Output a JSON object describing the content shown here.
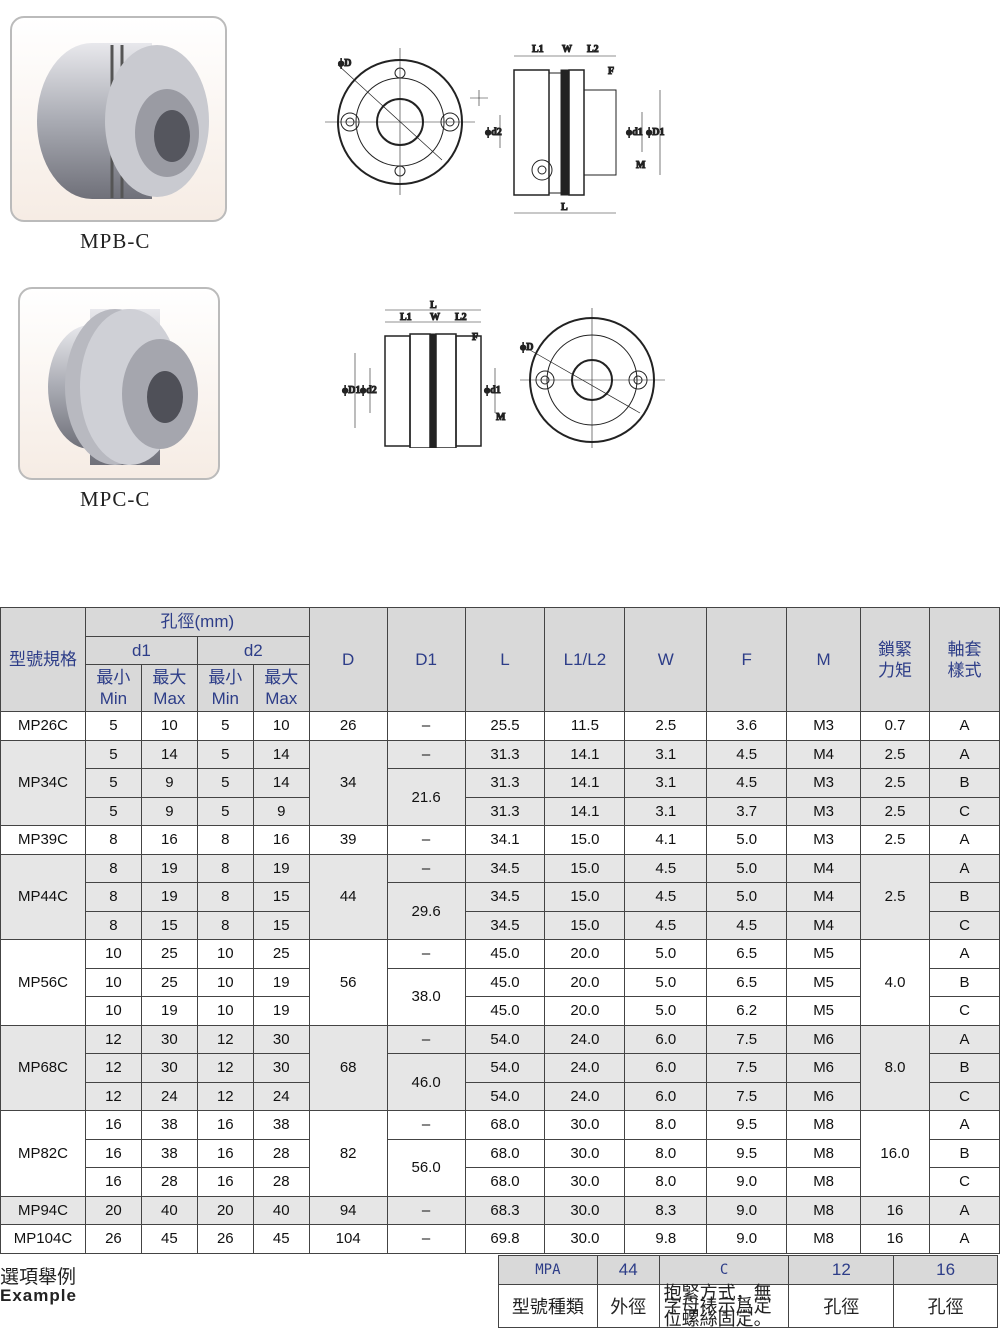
{
  "products": [
    {
      "caption": "MPB-C"
    },
    {
      "caption": "MPC-C"
    }
  ],
  "drawing_labels": {
    "top": {
      "phiD": "ϕD",
      "L1": "L1",
      "W": "W",
      "L2": "L2",
      "F": "F",
      "phid2": "ϕd2",
      "phid1": "ϕd1",
      "phiD1": "ϕD1",
      "M": "M",
      "L": "L"
    },
    "bottom": {
      "L": "L",
      "L1": "L1",
      "W": "W",
      "L2": "L2",
      "F": "F",
      "phiD1": "ϕD1",
      "phid2": "ϕd2",
      "phid1": "ϕd1",
      "M": "M",
      "phiD": "ϕD"
    }
  },
  "table": {
    "header": {
      "model": "型號規格",
      "bore": "孔徑(mm)",
      "d1": "d1",
      "d2": "d2",
      "min": "最小\nMin",
      "max": "最大\nMax",
      "D": "D",
      "D1": "D1",
      "L": "L",
      "L1L2": "L1/L2",
      "W": "W",
      "F": "F",
      "M": "M",
      "torque": "鎖緊\n力矩",
      "hub": "軸套\n樣式"
    },
    "groups": [
      {
        "model": "MP26C",
        "D": "26",
        "rows": [
          {
            "d1min": "5",
            "d1max": "10",
            "d2min": "5",
            "d2max": "10",
            "L": "25.5",
            "L1L2": "11.5",
            "W": "2.5",
            "F": "3.6",
            "M": "M3",
            "hub": "A"
          }
        ],
        "D1": [
          {
            "v": "–",
            "span": 1
          }
        ],
        "torque": [
          {
            "v": "0.7",
            "span": 1
          }
        ]
      },
      {
        "model": "MP34C",
        "D": "34",
        "rows": [
          {
            "d1min": "5",
            "d1max": "14",
            "d2min": "5",
            "d2max": "14",
            "L": "31.3",
            "L1L2": "14.1",
            "W": "3.1",
            "F": "4.5",
            "M": "M4",
            "hub": "A"
          },
          {
            "d1min": "5",
            "d1max": "9",
            "d2min": "5",
            "d2max": "14",
            "L": "31.3",
            "L1L2": "14.1",
            "W": "3.1",
            "F": "4.5",
            "M": "M3",
            "hub": "B"
          },
          {
            "d1min": "5",
            "d1max": "9",
            "d2min": "5",
            "d2max": "9",
            "L": "31.3",
            "L1L2": "14.1",
            "W": "3.1",
            "F": "3.7",
            "M": "M3",
            "hub": "C"
          }
        ],
        "D1": [
          {
            "v": "–",
            "span": 1
          },
          {
            "v": "21.6",
            "span": 2
          }
        ],
        "torque": [
          {
            "v": "2.5",
            "span": 1
          },
          {
            "v": "2.5",
            "span": 1
          },
          {
            "v": "2.5",
            "span": 1
          }
        ]
      },
      {
        "model": "MP39C",
        "D": "39",
        "rows": [
          {
            "d1min": "8",
            "d1max": "16",
            "d2min": "8",
            "d2max": "16",
            "L": "34.1",
            "L1L2": "15.0",
            "W": "4.1",
            "F": "5.0",
            "M": "M3",
            "hub": "A"
          }
        ],
        "D1": [
          {
            "v": "–",
            "span": 1
          }
        ],
        "torque": [
          {
            "v": "2.5",
            "span": 1
          }
        ]
      },
      {
        "model": "MP44C",
        "D": "44",
        "rows": [
          {
            "d1min": "8",
            "d1max": "19",
            "d2min": "8",
            "d2max": "19",
            "L": "34.5",
            "L1L2": "15.0",
            "W": "4.5",
            "F": "5.0",
            "M": "M4",
            "hub": "A"
          },
          {
            "d1min": "8",
            "d1max": "19",
            "d2min": "8",
            "d2max": "15",
            "L": "34.5",
            "L1L2": "15.0",
            "W": "4.5",
            "F": "5.0",
            "M": "M4",
            "hub": "B"
          },
          {
            "d1min": "8",
            "d1max": "15",
            "d2min": "8",
            "d2max": "15",
            "L": "34.5",
            "L1L2": "15.0",
            "W": "4.5",
            "F": "4.5",
            "M": "M4",
            "hub": "C"
          }
        ],
        "D1": [
          {
            "v": "–",
            "span": 1
          },
          {
            "v": "29.6",
            "span": 2
          }
        ],
        "torque": [
          {
            "v": "2.5",
            "span": 3
          }
        ]
      },
      {
        "model": "MP56C",
        "D": "56",
        "rows": [
          {
            "d1min": "10",
            "d1max": "25",
            "d2min": "10",
            "d2max": "25",
            "L": "45.0",
            "L1L2": "20.0",
            "W": "5.0",
            "F": "6.5",
            "M": "M5",
            "hub": "A"
          },
          {
            "d1min": "10",
            "d1max": "25",
            "d2min": "10",
            "d2max": "19",
            "L": "45.0",
            "L1L2": "20.0",
            "W": "5.0",
            "F": "6.5",
            "M": "M5",
            "hub": "B"
          },
          {
            "d1min": "10",
            "d1max": "19",
            "d2min": "10",
            "d2max": "19",
            "L": "45.0",
            "L1L2": "20.0",
            "W": "5.0",
            "F": "6.2",
            "M": "M5",
            "hub": "C"
          }
        ],
        "D1": [
          {
            "v": "–",
            "span": 1
          },
          {
            "v": "38.0",
            "span": 2
          }
        ],
        "torque": [
          {
            "v": "4.0",
            "span": 3
          }
        ]
      },
      {
        "model": "MP68C",
        "D": "68",
        "rows": [
          {
            "d1min": "12",
            "d1max": "30",
            "d2min": "12",
            "d2max": "30",
            "L": "54.0",
            "L1L2": "24.0",
            "W": "6.0",
            "F": "7.5",
            "M": "M6",
            "hub": "A"
          },
          {
            "d1min": "12",
            "d1max": "30",
            "d2min": "12",
            "d2max": "30",
            "L": "54.0",
            "L1L2": "24.0",
            "W": "6.0",
            "F": "7.5",
            "M": "M6",
            "hub": "B"
          },
          {
            "d1min": "12",
            "d1max": "24",
            "d2min": "12",
            "d2max": "24",
            "L": "54.0",
            "L1L2": "24.0",
            "W": "6.0",
            "F": "7.5",
            "M": "M6",
            "hub": "C"
          }
        ],
        "D1": [
          {
            "v": "–",
            "span": 1
          },
          {
            "v": "46.0",
            "span": 2
          }
        ],
        "torque": [
          {
            "v": "8.0",
            "span": 3
          }
        ]
      },
      {
        "model": "MP82C",
        "D": "82",
        "rows": [
          {
            "d1min": "16",
            "d1max": "38",
            "d2min": "16",
            "d2max": "38",
            "L": "68.0",
            "L1L2": "30.0",
            "W": "8.0",
            "F": "9.5",
            "M": "M8",
            "hub": "A"
          },
          {
            "d1min": "16",
            "d1max": "38",
            "d2min": "16",
            "d2max": "28",
            "L": "68.0",
            "L1L2": "30.0",
            "W": "8.0",
            "F": "9.5",
            "M": "M8",
            "hub": "B"
          },
          {
            "d1min": "16",
            "d1max": "28",
            "d2min": "16",
            "d2max": "28",
            "L": "68.0",
            "L1L2": "30.0",
            "W": "8.0",
            "F": "9.0",
            "M": "M8",
            "hub": "C"
          }
        ],
        "D1": [
          {
            "v": "–",
            "span": 1
          },
          {
            "v": "56.0",
            "span": 2
          }
        ],
        "torque": [
          {
            "v": "16.0",
            "span": 3
          }
        ]
      },
      {
        "model": "MP94C",
        "D": "94",
        "rows": [
          {
            "d1min": "20",
            "d1max": "40",
            "d2min": "20",
            "d2max": "40",
            "L": "68.3",
            "L1L2": "30.0",
            "W": "8.3",
            "F": "9.0",
            "M": "M8",
            "hub": "A"
          }
        ],
        "D1": [
          {
            "v": "–",
            "span": 1
          }
        ],
        "torque": [
          {
            "v": "16",
            "span": 1
          }
        ]
      },
      {
        "model": "MP104C",
        "D": "104",
        "rows": [
          {
            "d1min": "26",
            "d1max": "45",
            "d2min": "26",
            "d2max": "45",
            "L": "69.8",
            "L1L2": "30.0",
            "W": "9.8",
            "F": "9.0",
            "M": "M8",
            "hub": "A"
          }
        ],
        "D1": [
          {
            "v": "–",
            "span": 1
          }
        ],
        "torque": [
          {
            "v": "16",
            "span": 1
          }
        ]
      }
    ]
  },
  "example": {
    "title_zh": "選項舉例",
    "title_en": "Example",
    "codes": [
      "MPA",
      "44",
      "C",
      "12",
      "16"
    ],
    "meanings": [
      "型號種類",
      "外徑",
      "抱緊方式，無字母裱示爲定位螺絲固定。",
      "孔徑",
      "孔徑"
    ]
  }
}
